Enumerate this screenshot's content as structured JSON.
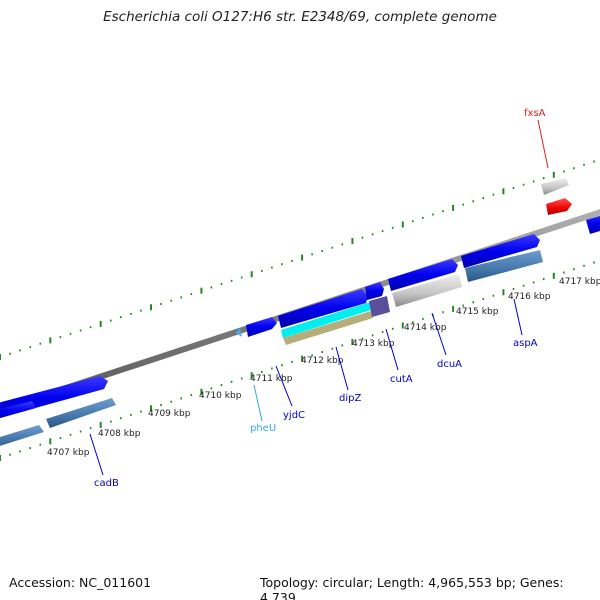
{
  "title": "Escherichia coli O127:H6 str. E2348/69, complete genome",
  "footer": {
    "accession": "Accession: NC_011601",
    "stats": "Topology: circular; Length: 4,965,553 bp; Genes: 4,739"
  },
  "scale": {
    "unit": "kbp",
    "labels": [
      "4707 kbp",
      "4708 kbp",
      "4709 kbp",
      "4710 kbp",
      "4711 kbp",
      "4712 kbp",
      "4713 kbp",
      "4714 kbp",
      "4715 kbp",
      "4716 kbp",
      "4717 kbp"
    ]
  },
  "genes": [
    {
      "name": "cadB",
      "color": "#0000cc"
    },
    {
      "name": "pheU",
      "color": "#33aadd"
    },
    {
      "name": "yjdC",
      "color": "#0000cc"
    },
    {
      "name": "dipZ",
      "color": "#0000cc"
    },
    {
      "name": "cutA",
      "color": "#0000cc"
    },
    {
      "name": "dcuA",
      "color": "#0000cc"
    },
    {
      "name": "aspA",
      "color": "#0000cc"
    },
    {
      "name": "fxsA",
      "color": "#dd2222"
    }
  ],
  "colors": {
    "backbone": "#808080",
    "tick": "#228822",
    "cds_forward": "#0000ee",
    "cds_reverse": "#4477aa",
    "gene_grey": "#c8c8c8",
    "gene_red": "#ee0000",
    "trna": "#44aaee",
    "cyan": "#00eeee",
    "khaki": "#b5ad7a",
    "purple": "#5a4e9a"
  }
}
